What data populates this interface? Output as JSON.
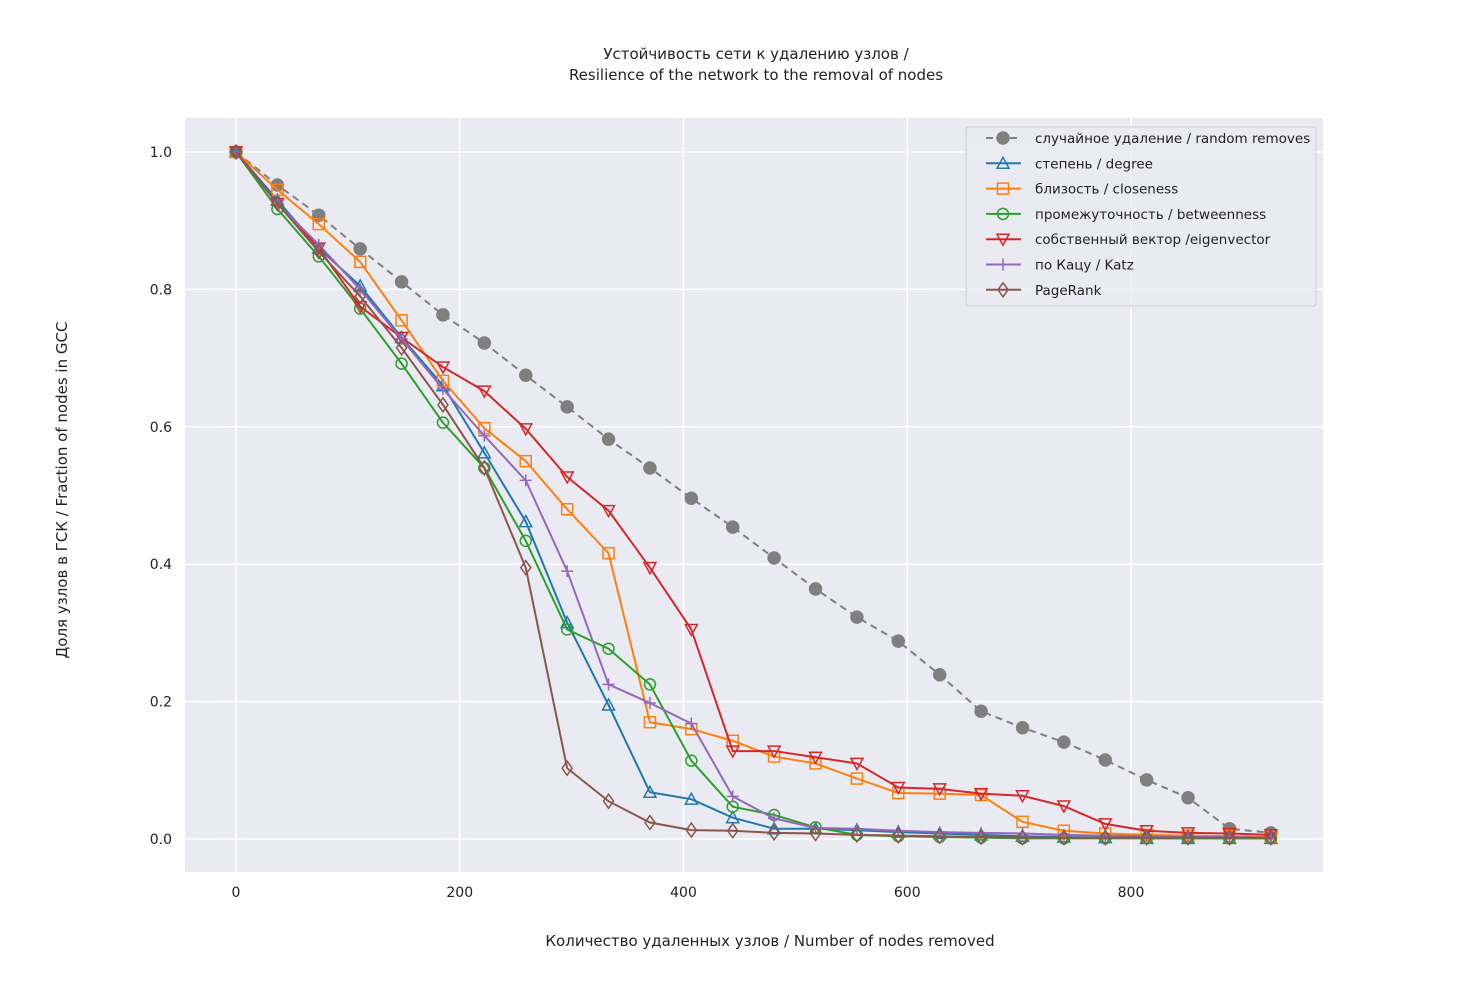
{
  "chart_data": {
    "type": "line",
    "title_lines": [
      "Устойчивость сети к удалению узлов /",
      "Resilience of the network to the removal of nodes"
    ],
    "xlabel": "Количество удаленных узлов / Number of nodes removed",
    "ylabel": "Доля узлов в ГСК / Fraction of nodes in GCC",
    "xlim": [
      -46,
      970
    ],
    "ylim": [
      -0.048,
      1.048
    ],
    "xticks": [
      0,
      200,
      400,
      600,
      800
    ],
    "xtick_labels": [
      "0",
      "200",
      "400",
      "600",
      "800"
    ],
    "yticks": [
      0,
      0.2,
      0.4,
      0.6,
      0.8,
      1.0
    ],
    "ytick_labels": [
      "0.0",
      "0.2",
      "0.4",
      "0.6",
      "0.8",
      "1.0"
    ],
    "grid": true,
    "legend_position": "top-right",
    "x": [
      0,
      37,
      74,
      111,
      148,
      185,
      222,
      259,
      296,
      333,
      370,
      407,
      444,
      481,
      518,
      555,
      592,
      629,
      666,
      703,
      740,
      777,
      814,
      851,
      888,
      925
    ],
    "series": [
      {
        "name": "случайное удаление / random removes",
        "color": "#7f7f7f",
        "marker": "filled-circle",
        "dashed": true,
        "values": [
          1.0,
          0.952,
          0.908,
          0.859,
          0.811,
          0.763,
          0.722,
          0.675,
          0.629,
          0.582,
          0.54,
          0.496,
          0.454,
          0.409,
          0.364,
          0.323,
          0.288,
          0.239,
          0.186,
          0.162,
          0.141,
          0.115,
          0.086,
          0.06,
          0.015,
          0.009
        ]
      },
      {
        "name": "степень / degree",
        "color": "#1f77b4",
        "marker": "triangle-up",
        "values": [
          1.0,
          0.93,
          0.86,
          0.805,
          0.73,
          0.66,
          0.562,
          0.462,
          0.315,
          0.195,
          0.068,
          0.058,
          0.031,
          0.015,
          0.015,
          0.013,
          0.01,
          0.008,
          0.006,
          0.004,
          0.003,
          0.002,
          0.001,
          0.001,
          0.001,
          0.001
        ]
      },
      {
        "name": "близость / closeness",
        "color": "#ff7f0e",
        "marker": "square",
        "values": [
          1.0,
          0.945,
          0.895,
          0.84,
          0.755,
          0.667,
          0.598,
          0.55,
          0.48,
          0.416,
          0.17,
          0.16,
          0.143,
          0.12,
          0.11,
          0.088,
          0.067,
          0.066,
          0.064,
          0.025,
          0.012,
          0.008,
          0.006,
          0.005,
          0.004,
          0.003
        ]
      },
      {
        "name": "промежуточность / betweenness",
        "color": "#2ca02c",
        "marker": "circle",
        "values": [
          1.0,
          0.917,
          0.848,
          0.772,
          0.692,
          0.606,
          0.54,
          0.434,
          0.305,
          0.277,
          0.225,
          0.114,
          0.047,
          0.035,
          0.017,
          0.006,
          0.004,
          0.003,
          0.002,
          0.001,
          0.001,
          0.001,
          0.001,
          0.001,
          0.001,
          0.001
        ]
      },
      {
        "name": "собственный вектор /eigenvector",
        "color": "#d62728",
        "marker": "triangle-down",
        "values": [
          1.0,
          0.925,
          0.86,
          0.775,
          0.73,
          0.687,
          0.652,
          0.597,
          0.527,
          0.478,
          0.395,
          0.305,
          0.128,
          0.128,
          0.119,
          0.11,
          0.075,
          0.073,
          0.066,
          0.063,
          0.048,
          0.022,
          0.012,
          0.009,
          0.008,
          0.006
        ]
      },
      {
        "name": "по Кацу / Katz",
        "color": "#9467bd",
        "marker": "plus",
        "values": [
          1.0,
          0.925,
          0.865,
          0.8,
          0.728,
          0.655,
          0.587,
          0.522,
          0.39,
          0.225,
          0.198,
          0.168,
          0.062,
          0.03,
          0.016,
          0.015,
          0.012,
          0.01,
          0.009,
          0.008,
          0.006,
          0.005,
          0.004,
          0.003,
          0.003,
          0.002
        ]
      },
      {
        "name": "PageRank",
        "color": "#8c564b",
        "marker": "diamond",
        "values": [
          1.0,
          0.925,
          0.855,
          0.79,
          0.715,
          0.632,
          0.54,
          0.395,
          0.103,
          0.055,
          0.024,
          0.013,
          0.012,
          0.009,
          0.008,
          0.006,
          0.005,
          0.004,
          0.003,
          0.002,
          0.002,
          0.002,
          0.002,
          0.002,
          0.002,
          0.002
        ]
      }
    ]
  }
}
